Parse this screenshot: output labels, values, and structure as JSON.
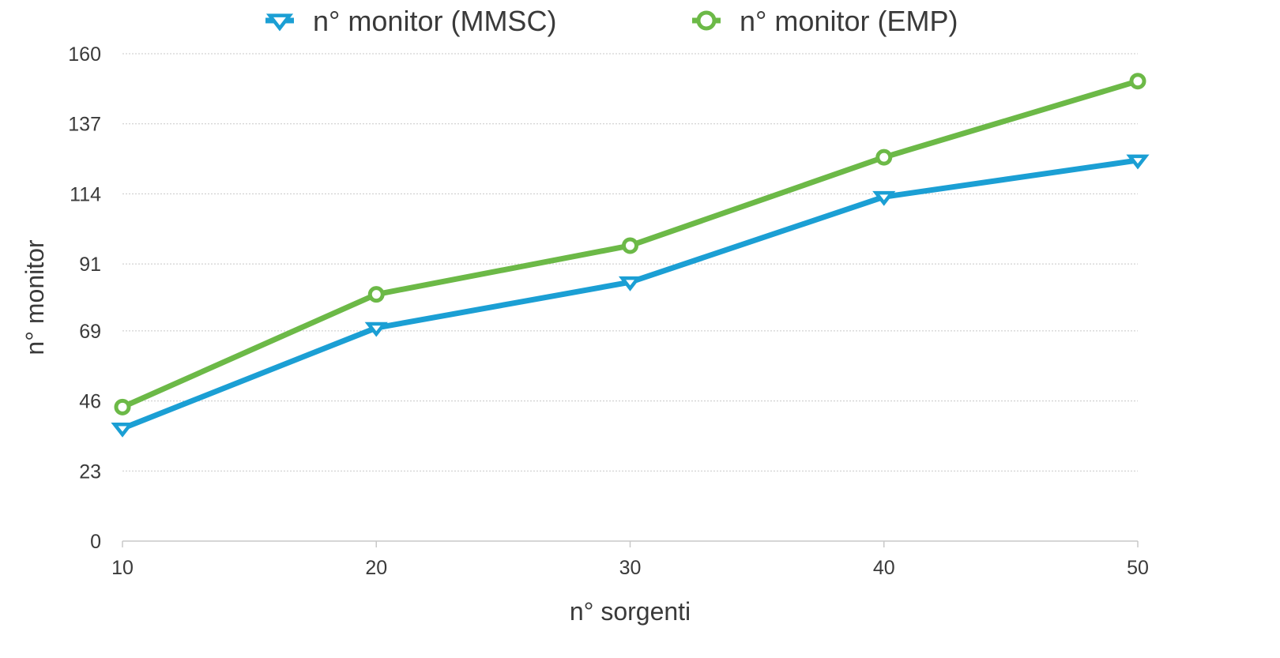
{
  "chart_data": {
    "type": "line",
    "xlabel": "n° sorgenti",
    "ylabel": "n° monitor",
    "x": [
      10,
      20,
      30,
      40,
      50
    ],
    "xlim": [
      10,
      50
    ],
    "ylim": [
      0,
      160
    ],
    "yticks": [
      0,
      23,
      46,
      69,
      91,
      114,
      137,
      160
    ],
    "grid": true,
    "legend_position": "top",
    "series": [
      {
        "name": "n° monitor (MMSC)",
        "marker": "triangle-down",
        "color": "#1b9fd4",
        "values": [
          37,
          70,
          85,
          113,
          125
        ]
      },
      {
        "name": "n° monitor (EMP)",
        "marker": "circle",
        "color": "#6cb947",
        "values": [
          44,
          81,
          97,
          126,
          151
        ]
      }
    ]
  }
}
